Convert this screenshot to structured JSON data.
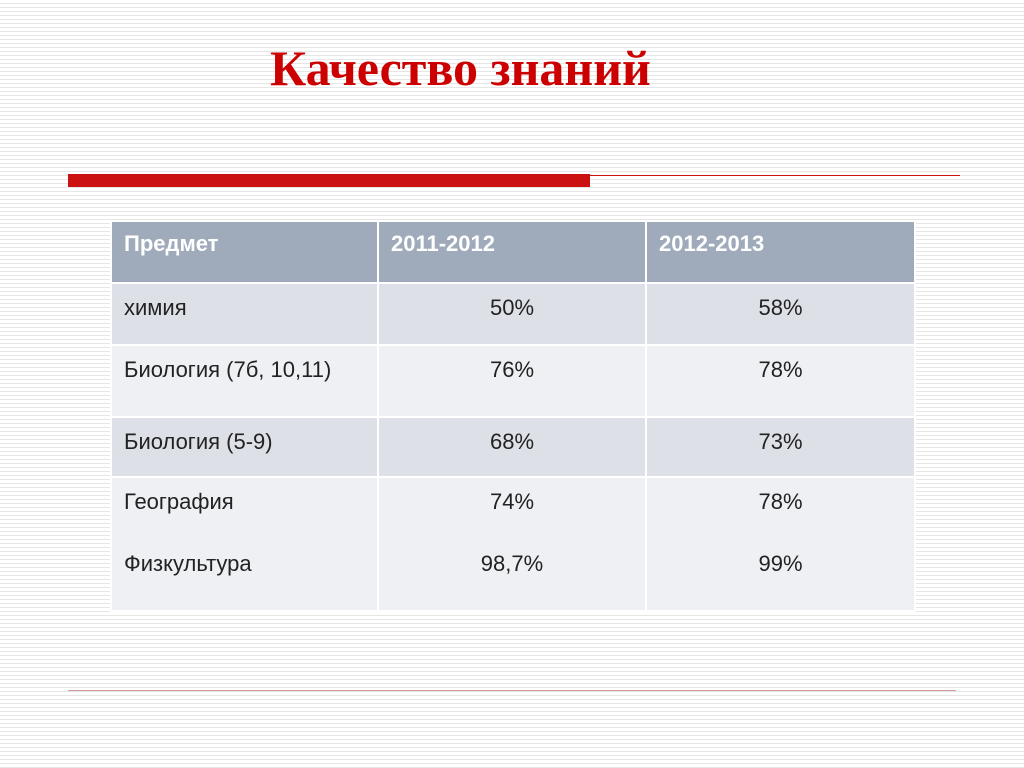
{
  "title": "Качество знаний",
  "table": {
    "headers": [
      "Предмет",
      "2011-2012",
      "2012-2013"
    ],
    "rows": [
      {
        "subject": "химия",
        "y2011": "50%",
        "y2012": "58%"
      },
      {
        "subject": "Биология (7б, 10,11)",
        "y2011": "76%",
        "y2012": "78%"
      },
      {
        "subject": "Биология (5-9)",
        "y2011": "68%",
        "y2012": "73%"
      },
      {
        "subjects": [
          "География",
          "Физкультура"
        ],
        "y2011": [
          "74%",
          "98,7%"
        ],
        "y2012": [
          "78%",
          "99%"
        ]
      }
    ]
  },
  "colors": {
    "title": "#cc0000",
    "accent_bar": "#cc1111",
    "header_bg": "#9fabbb",
    "row_odd_bg": "#dde1e7",
    "row_even_bg": "#eef0f3"
  }
}
